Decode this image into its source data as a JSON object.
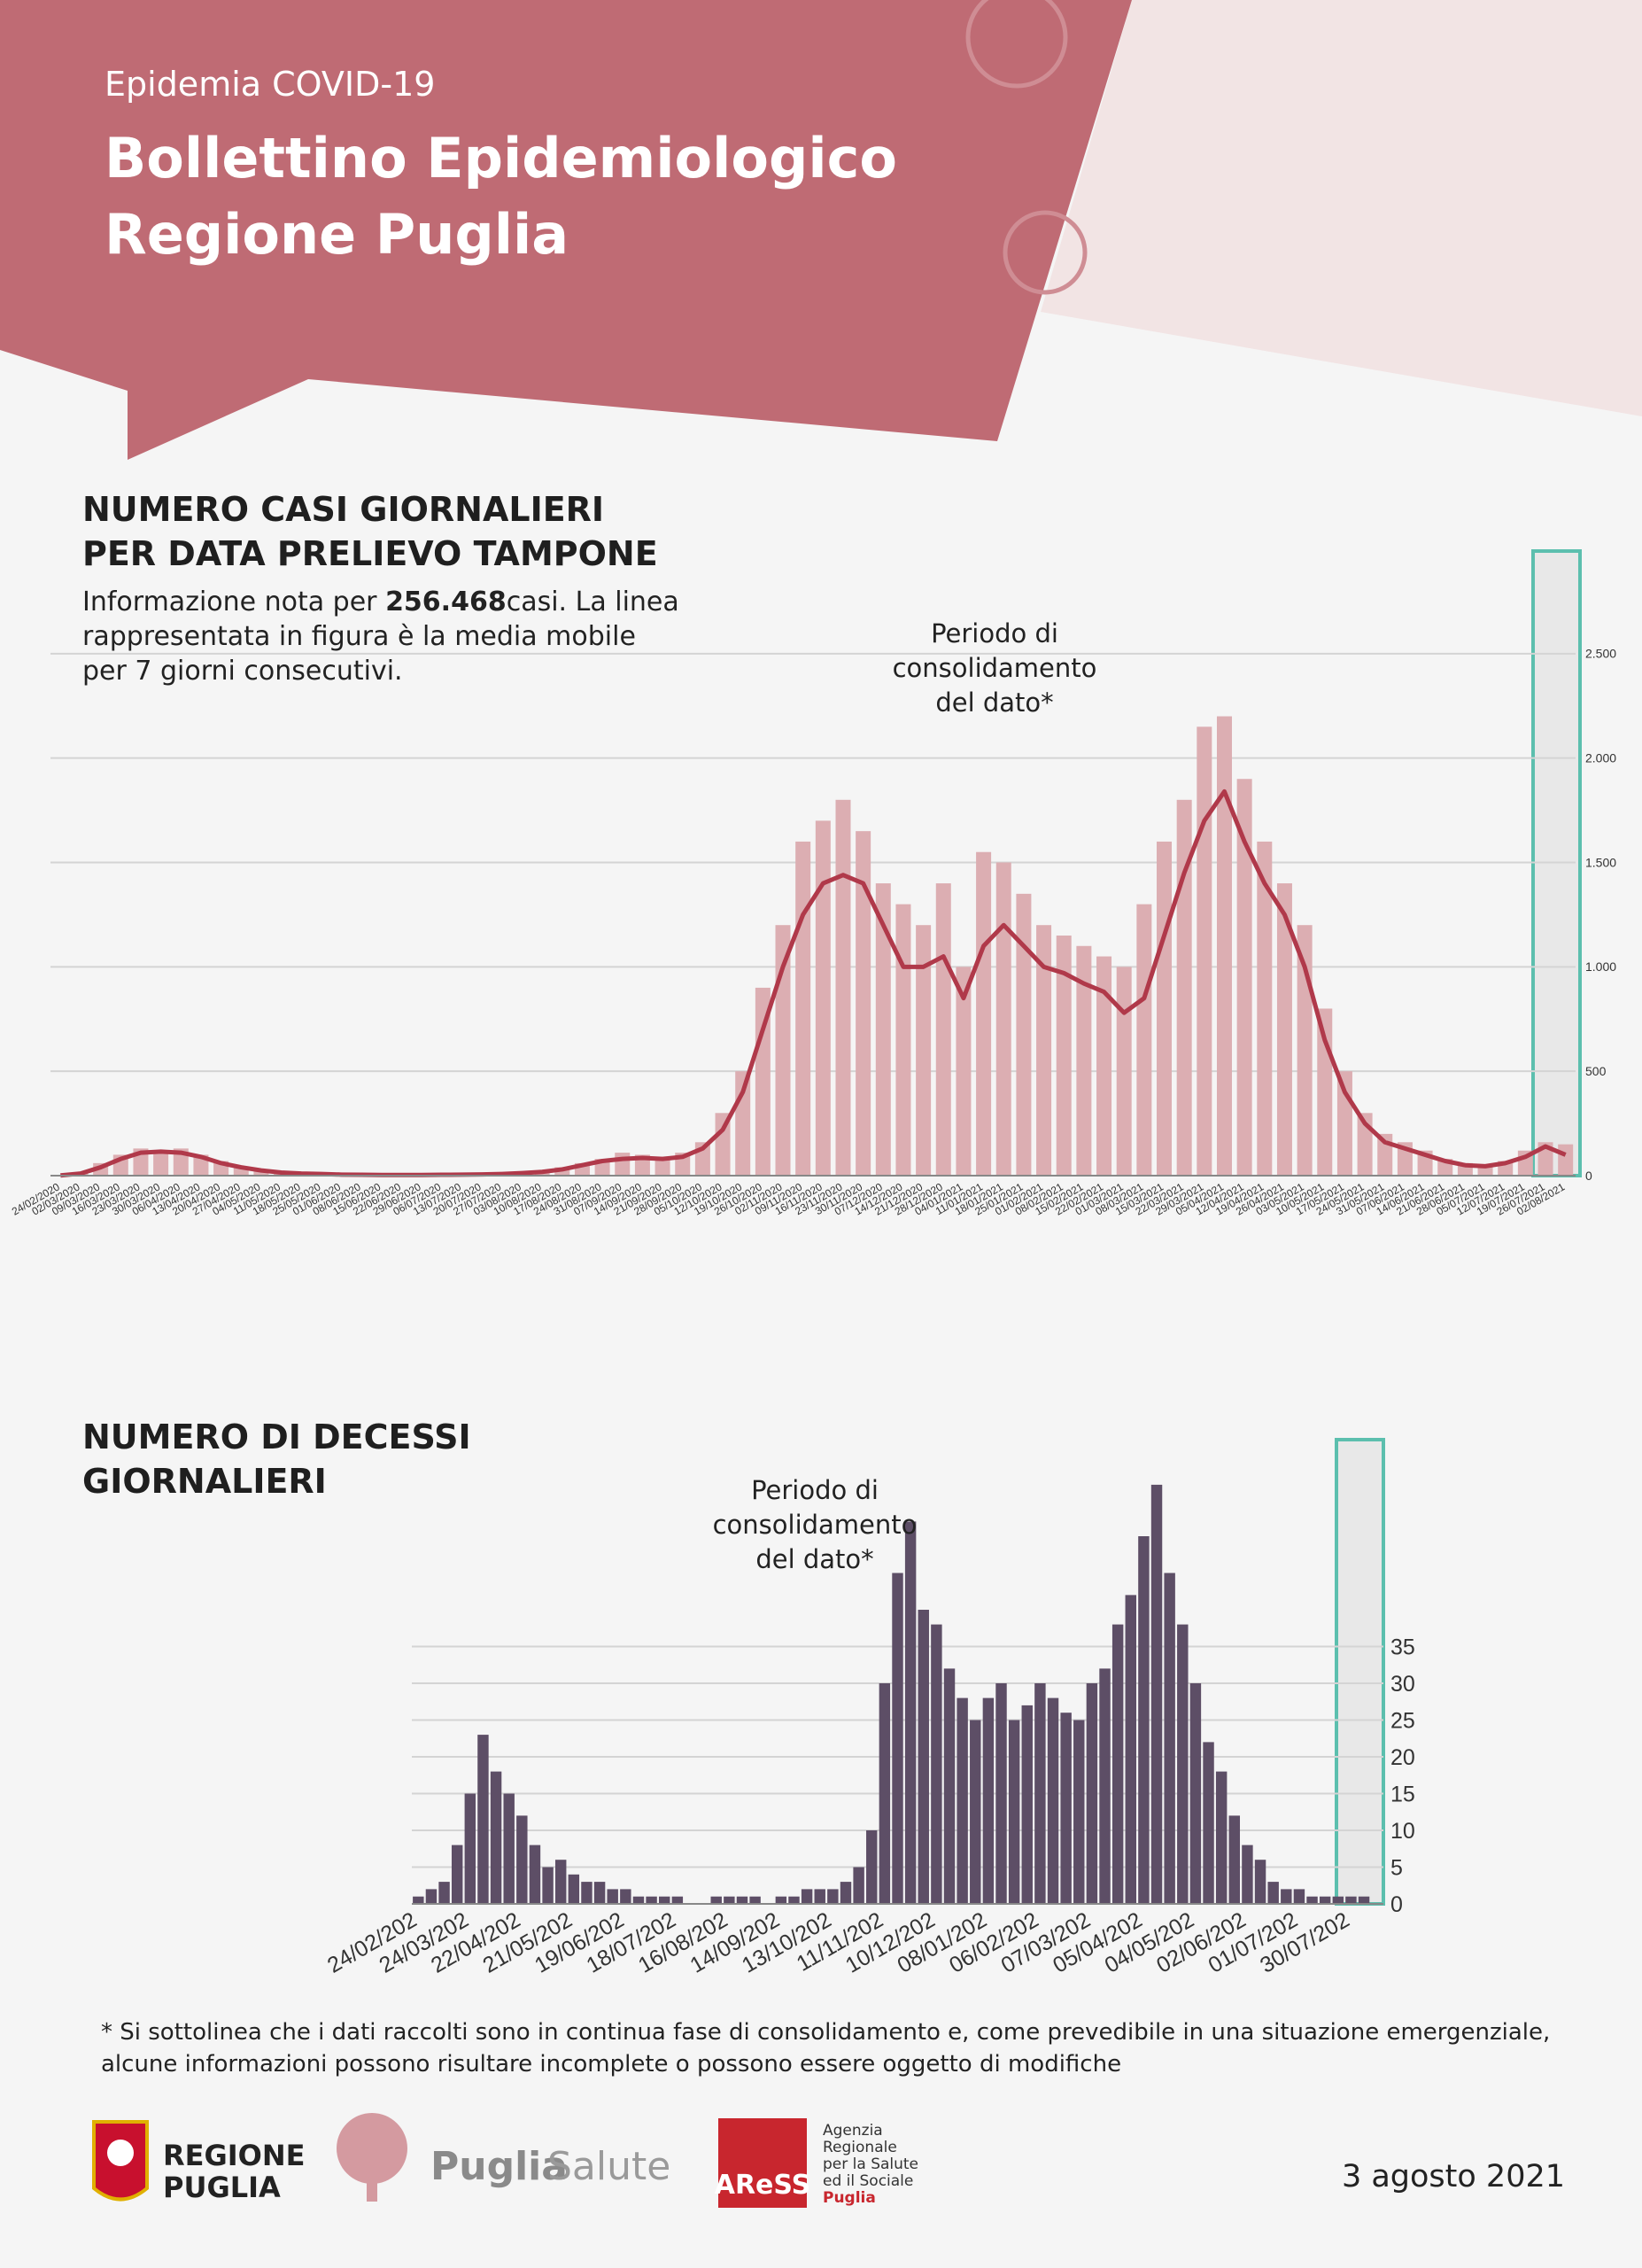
{
  "header": {
    "kicker": "Epidemia COVID-19",
    "title": [
      "Bollettino Epidemiologico",
      "Regione Puglia"
    ]
  },
  "chart_data": [
    {
      "type": "bar",
      "title": [
        "NUMERO CASI GIORNALIERI",
        "PER DATA PRELIEVO TAMPONE"
      ],
      "subtitle": [
        "Informazione nota per ",
        "256.468",
        "casi. La linea rappresentata in figura è la media mobile per 7 giorni consecutivi."
      ],
      "annotation": [
        "Periodo di",
        "consolidamento",
        "del dato*"
      ],
      "categories": [
        "24/02/2020",
        "02/03/2020",
        "09/03/2020",
        "16/03/2020",
        "23/03/2020",
        "30/03/2020",
        "06/04/2020",
        "13/04/2020",
        "20/04/2020",
        "27/04/2020",
        "04/05/2020",
        "11/05/2020",
        "18/05/2020",
        "25/05/2020",
        "01/06/2020",
        "08/06/2020",
        "15/06/2020",
        "22/06/2020",
        "29/06/2020",
        "06/07/2020",
        "13/07/2020",
        "20/07/2020",
        "27/07/2020",
        "03/08/2020",
        "10/08/2020",
        "17/08/2020",
        "24/08/2020",
        "31/08/2020",
        "07/09/2020",
        "14/09/2020",
        "21/09/2020",
        "28/09/2020",
        "05/10/2020",
        "12/10/2020",
        "19/10/2020",
        "26/10/2020",
        "02/11/2020",
        "09/11/2020",
        "16/11/2020",
        "23/11/2020",
        "30/11/2020",
        "07/12/2020",
        "14/12/2020",
        "21/12/2020",
        "28/12/2020",
        "04/01/2021",
        "11/01/2021",
        "18/01/2021",
        "25/01/2021",
        "01/02/2021",
        "08/02/2021",
        "15/02/2021",
        "22/02/2021",
        "01/03/2021",
        "08/03/2021",
        "15/03/2021",
        "22/03/2021",
        "29/03/2021",
        "05/04/2021",
        "12/04/2021",
        "19/04/2021",
        "26/04/2021",
        "03/05/2021",
        "10/05/2021",
        "17/05/2021",
        "24/05/2021",
        "31/05/2021",
        "07/06/2021",
        "14/06/2021",
        "21/06/2021",
        "28/06/2021",
        "05/07/2021",
        "12/07/2021",
        "19/07/2021",
        "26/07/2021",
        "02/08/2021"
      ],
      "series": [
        {
          "color": "#dcaeb2",
          "values": [
            2,
            15,
            60,
            100,
            130,
            120,
            130,
            100,
            70,
            40,
            25,
            15,
            10,
            8,
            5,
            4,
            3,
            3,
            3,
            4,
            5,
            6,
            10,
            15,
            20,
            40,
            60,
            80,
            110,
            100,
            90,
            110,
            160,
            300,
            500,
            900,
            1200,
            1600,
            1700,
            1800,
            1650,
            1400,
            1300,
            1200,
            1400,
            1000,
            1550,
            1500,
            1350,
            1200,
            1150,
            1100,
            1050,
            1000,
            1300,
            1600,
            1800,
            2150,
            2200,
            1900,
            1600,
            1400,
            1200,
            800,
            500,
            300,
            200,
            160,
            120,
            80,
            60,
            50,
            70,
            120,
            160,
            150
          ]
        },
        {
          "type": "line",
          "color": "#b0394a",
          "values": [
            1,
            10,
            40,
            80,
            110,
            115,
            110,
            90,
            60,
            40,
            25,
            15,
            10,
            8,
            5,
            4,
            3,
            3,
            3,
            4,
            5,
            6,
            8,
            12,
            18,
            30,
            50,
            70,
            80,
            85,
            80,
            90,
            130,
            220,
            400,
            700,
            1000,
            1250,
            1400,
            1440,
            1400,
            1200,
            1000,
            1000,
            1050,
            850,
            1100,
            1200,
            1100,
            1000,
            970,
            920,
            880,
            780,
            850,
            1150,
            1450,
            1700,
            1840,
            1600,
            1400,
            1250,
            1000,
            650,
            400,
            250,
            160,
            130,
            100,
            70,
            50,
            45,
            60,
            90,
            140,
            100
          ]
        }
      ],
      "ylim": [
        0,
        3000
      ],
      "yticks": [
        0,
        500,
        {
          "value": 1000,
          "label": "1.000"
        },
        {
          "value": 1500,
          "label": "1.500"
        },
        {
          "value": 2000,
          "label": "2.000"
        },
        {
          "value": 2500,
          "label": "2.500"
        }
      ],
      "grid": true
    },
    {
      "type": "bar",
      "title": [
        "NUMERO DI DECESSI",
        "GIORNALIERI"
      ],
      "annotation": [
        "Periodo di",
        "consolidamento",
        "del dato*"
      ],
      "categories": [
        "24/02/202",
        null,
        null,
        null,
        "24/03/202",
        null,
        null,
        null,
        "22/04/202",
        null,
        null,
        null,
        "21/05/202",
        null,
        null,
        null,
        "19/06/202",
        null,
        null,
        null,
        "18/07/202",
        null,
        null,
        null,
        "16/08/202",
        null,
        null,
        null,
        "14/09/202",
        null,
        null,
        null,
        "13/10/202",
        null,
        null,
        null,
        "11/11/202",
        null,
        null,
        null,
        "10/12/202",
        null,
        null,
        null,
        "08/01/202",
        null,
        null,
        null,
        "06/02/202",
        null,
        null,
        null,
        "07/03/202",
        null,
        null,
        null,
        "05/04/202",
        null,
        null,
        null,
        "04/05/202",
        null,
        null,
        null,
        "02/06/202",
        null,
        null,
        null,
        "01/07/202",
        null,
        null,
        null,
        "30/07/202",
        null,
        null
      ],
      "series": [
        {
          "color": "#5d4e66",
          "values": [
            1,
            2,
            3,
            8,
            15,
            23,
            18,
            15,
            12,
            8,
            5,
            6,
            4,
            3,
            3,
            2,
            2,
            1,
            1,
            1,
            1,
            0,
            0,
            1,
            1,
            1,
            1,
            0,
            1,
            1,
            2,
            2,
            2,
            3,
            5,
            10,
            30,
            45,
            52,
            40,
            38,
            32,
            28,
            25,
            28,
            30,
            25,
            27,
            30,
            28,
            26,
            25,
            30,
            32,
            38,
            42,
            50,
            57,
            45,
            38,
            30,
            22,
            18,
            12,
            8,
            6,
            3,
            2,
            2,
            1,
            1,
            1,
            1,
            1,
            0
          ]
        }
      ],
      "ylim": [
        0,
        60
      ],
      "yticks": [
        0,
        5,
        10,
        15,
        20,
        25,
        30,
        35
      ],
      "grid": true
    }
  ],
  "footnote": [
    "* Si sottolinea che i dati raccolti sono in continua fase di consolidamento e, come prevedibile in una situazione emergenziale,",
    "alcune informazioni possono risultare incomplete o possono essere oggetto di modifiche"
  ],
  "footer": {
    "regione": [
      "REGIONE",
      "PUGLIA"
    ],
    "puglia": "Puglia",
    "salute": "Salute",
    "aress": "AReSS",
    "agency": [
      "Agenzia",
      "Regionale",
      "per la Salute",
      "ed il Sociale",
      "Puglia"
    ],
    "date": "3 agosto 2021"
  }
}
